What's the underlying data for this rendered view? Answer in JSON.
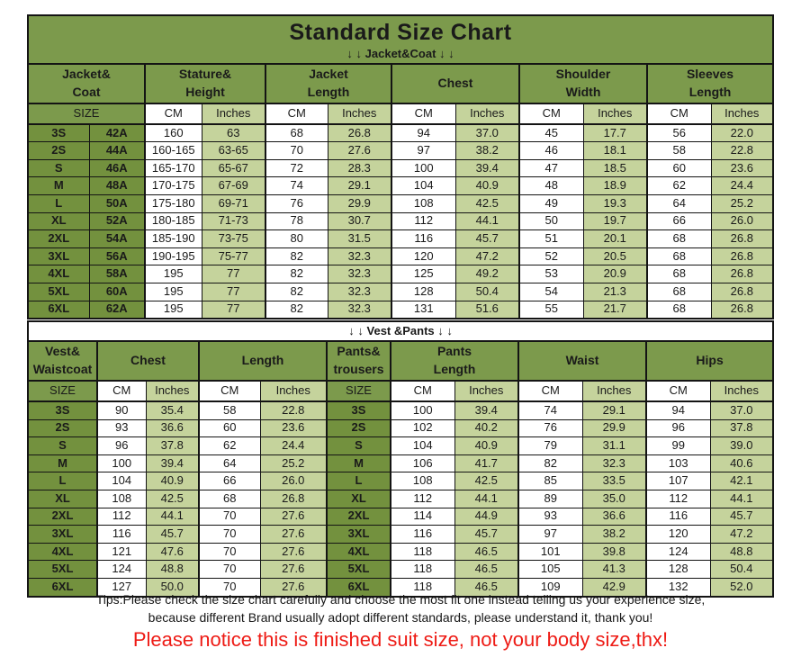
{
  "title": "Standard Size Chart",
  "colors": {
    "header_green": "#7c9a4c",
    "size_green": "#73913e",
    "light_green": "#c5d39c",
    "border": "#141414",
    "red_notice": "#ee1b15",
    "text": "#1a1a1a"
  },
  "jacket_table": {
    "band": "↓ ↓  Jacket&Coat ↓ ↓",
    "group_headers": [
      "Jacket&\nCoat",
      "Stature&\nHeight",
      "Jacket\nLength",
      "Chest",
      "Shoulder\nWidth",
      "Sleeves\nLength"
    ],
    "unit_headers": [
      "SIZE",
      "CM",
      "Inches",
      "CM",
      "Inches",
      "CM",
      "Inches",
      "CM",
      "Inches",
      "CM",
      "Inches"
    ],
    "rows": [
      [
        "3S",
        "42A",
        "160",
        "63",
        "68",
        "26.8",
        "94",
        "37.0",
        "45",
        "17.7",
        "56",
        "22.0"
      ],
      [
        "2S",
        "44A",
        "160-165",
        "63-65",
        "70",
        "27.6",
        "97",
        "38.2",
        "46",
        "18.1",
        "58",
        "22.8"
      ],
      [
        "S",
        "46A",
        "165-170",
        "65-67",
        "72",
        "28.3",
        "100",
        "39.4",
        "47",
        "18.5",
        "60",
        "23.6"
      ],
      [
        "M",
        "48A",
        "170-175",
        "67-69",
        "74",
        "29.1",
        "104",
        "40.9",
        "48",
        "18.9",
        "62",
        "24.4"
      ],
      [
        "L",
        "50A",
        "175-180",
        "69-71",
        "76",
        "29.9",
        "108",
        "42.5",
        "49",
        "19.3",
        "64",
        "25.2"
      ],
      [
        "XL",
        "52A",
        "180-185",
        "71-73",
        "78",
        "30.7",
        "112",
        "44.1",
        "50",
        "19.7",
        "66",
        "26.0"
      ],
      [
        "2XL",
        "54A",
        "185-190",
        "73-75",
        "80",
        "31.5",
        "116",
        "45.7",
        "51",
        "20.1",
        "68",
        "26.8"
      ],
      [
        "3XL",
        "56A",
        "190-195",
        "75-77",
        "82",
        "32.3",
        "120",
        "47.2",
        "52",
        "20.5",
        "68",
        "26.8"
      ],
      [
        "4XL",
        "58A",
        "195",
        "77",
        "82",
        "32.3",
        "125",
        "49.2",
        "53",
        "20.9",
        "68",
        "26.8"
      ],
      [
        "5XL",
        "60A",
        "195",
        "77",
        "82",
        "32.3",
        "128",
        "50.4",
        "54",
        "21.3",
        "68",
        "26.8"
      ],
      [
        "6XL",
        "62A",
        "195",
        "77",
        "82",
        "32.3",
        "131",
        "51.6",
        "55",
        "21.7",
        "68",
        "26.8"
      ]
    ]
  },
  "vest_table": {
    "band": "↓ ↓  Vest &Pants ↓ ↓",
    "group_headers": [
      "Vest&\nWaistcoat",
      "Chest",
      "Length",
      "Pants&\ntrousers",
      "Pants\nLength",
      "Waist",
      "Hips"
    ],
    "unit_headers": [
      "SIZE",
      "CM",
      "Inches",
      "CM",
      "Inches",
      "SIZE",
      "CM",
      "Inches",
      "CM",
      "Inches",
      "CM",
      "Inches"
    ],
    "rows": [
      [
        "3S",
        "90",
        "35.4",
        "58",
        "22.8",
        "3S",
        "100",
        "39.4",
        "74",
        "29.1",
        "94",
        "37.0"
      ],
      [
        "2S",
        "93",
        "36.6",
        "60",
        "23.6",
        "2S",
        "102",
        "40.2",
        "76",
        "29.9",
        "96",
        "37.8"
      ],
      [
        "S",
        "96",
        "37.8",
        "62",
        "24.4",
        "S",
        "104",
        "40.9",
        "79",
        "31.1",
        "99",
        "39.0"
      ],
      [
        "M",
        "100",
        "39.4",
        "64",
        "25.2",
        "M",
        "106",
        "41.7",
        "82",
        "32.3",
        "103",
        "40.6"
      ],
      [
        "L",
        "104",
        "40.9",
        "66",
        "26.0",
        "L",
        "108",
        "42.5",
        "85",
        "33.5",
        "107",
        "42.1"
      ],
      [
        "XL",
        "108",
        "42.5",
        "68",
        "26.8",
        "XL",
        "112",
        "44.1",
        "89",
        "35.0",
        "112",
        "44.1"
      ],
      [
        "2XL",
        "112",
        "44.1",
        "70",
        "27.6",
        "2XL",
        "114",
        "44.9",
        "93",
        "36.6",
        "116",
        "45.7"
      ],
      [
        "3XL",
        "116",
        "45.7",
        "70",
        "27.6",
        "3XL",
        "116",
        "45.7",
        "97",
        "38.2",
        "120",
        "47.2"
      ],
      [
        "4XL",
        "121",
        "47.6",
        "70",
        "27.6",
        "4XL",
        "118",
        "46.5",
        "101",
        "39.8",
        "124",
        "48.8"
      ],
      [
        "5XL",
        "124",
        "48.8",
        "70",
        "27.6",
        "5XL",
        "118",
        "46.5",
        "105",
        "41.3",
        "128",
        "50.4"
      ],
      [
        "6XL",
        "127",
        "50.0",
        "70",
        "27.6",
        "6XL",
        "118",
        "46.5",
        "109",
        "42.9",
        "132",
        "52.0"
      ]
    ]
  },
  "footer": {
    "tips_line1": "Tips:Please check the size chart carefully and choose the most fit one instead telling us your experience size,",
    "tips_line2": "because different Brand usually adopt different standards, please understand it, thank you!",
    "notice": "Please notice this is finished suit size, not your body size,thx!"
  }
}
